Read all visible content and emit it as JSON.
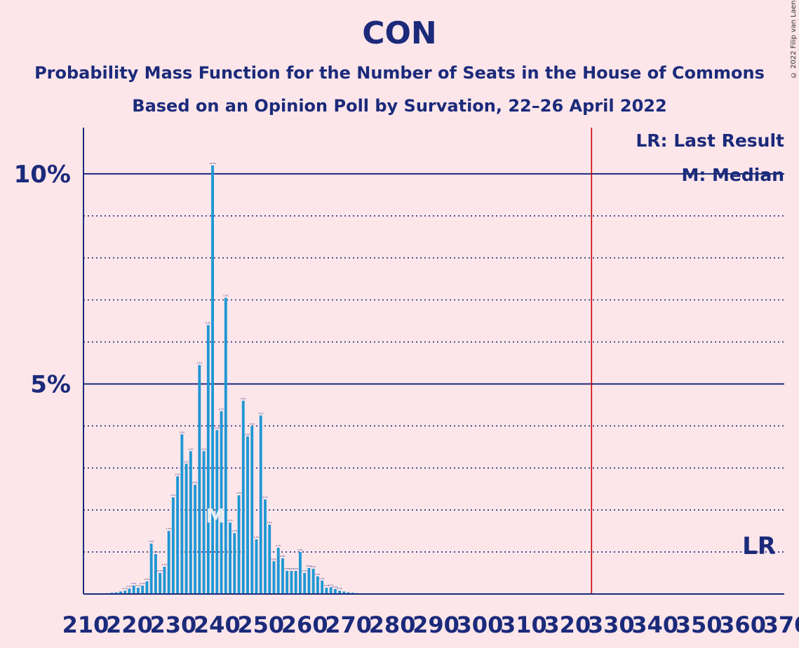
{
  "title": "CON",
  "subtitle1": "Probability Mass Function for the Number of Seats in the House of Commons",
  "subtitle2": "Based on an Opinion Poll by Survation, 22–26 April 2022",
  "copyright": "© 2022 Filip van Laenen",
  "legend": {
    "last_result": "LR: Last Result",
    "median": "M: Median"
  },
  "colors": {
    "bar": "#1f97d4",
    "background": "#fde6ea",
    "text": "#1b2a7a",
    "last_result_line": "#cc0000"
  },
  "chart_data": {
    "type": "bar",
    "xlabel": "",
    "ylabel": "",
    "ylim": [
      0,
      11.1
    ],
    "xlim": [
      210,
      370
    ],
    "yticks": [
      {
        "value": 5,
        "label": "5%"
      },
      {
        "value": 10,
        "label": "10%"
      }
    ],
    "minor_gridlines": [
      1,
      2,
      3,
      4,
      6,
      7,
      8,
      9
    ],
    "xtick_labels": [
      "210",
      "220",
      "230",
      "240",
      "250",
      "260",
      "270",
      "280",
      "290",
      "300",
      "310",
      "320",
      "330",
      "340",
      "350",
      "360",
      "370"
    ],
    "last_result": {
      "seats": 326,
      "label": "LR"
    },
    "median": {
      "seats": 240,
      "label": "M"
    },
    "seats": [
      210,
      211,
      212,
      213,
      214,
      215,
      216,
      217,
      218,
      219,
      220,
      221,
      222,
      223,
      224,
      225,
      226,
      227,
      228,
      229,
      230,
      231,
      232,
      233,
      234,
      235,
      236,
      237,
      238,
      239,
      240,
      241,
      242,
      243,
      244,
      245,
      246,
      247,
      248,
      249,
      250,
      251,
      252,
      253,
      254,
      255,
      256,
      257,
      258,
      259,
      260,
      261,
      262,
      263,
      264,
      265,
      266,
      267,
      268,
      269,
      270,
      271,
      272
    ],
    "values": [
      0.01,
      0.01,
      0.01,
      0.01,
      0.01,
      0.02,
      0.03,
      0.04,
      0.06,
      0.08,
      0.13,
      0.2,
      0.15,
      0.2,
      0.3,
      1.2,
      0.95,
      0.5,
      0.65,
      1.5,
      2.3,
      2.8,
      3.8,
      3.1,
      3.4,
      2.6,
      5.45,
      3.4,
      6.4,
      10.2,
      3.9,
      4.35,
      7.05,
      1.7,
      1.45,
      2.35,
      4.6,
      3.75,
      4.0,
      1.3,
      4.25,
      2.25,
      1.65,
      0.78,
      1.1,
      0.85,
      0.55,
      0.55,
      0.55,
      1.0,
      0.5,
      0.62,
      0.6,
      0.42,
      0.32,
      0.15,
      0.16,
      0.12,
      0.08,
      0.06,
      0.04,
      0.03,
      0.02
    ]
  }
}
